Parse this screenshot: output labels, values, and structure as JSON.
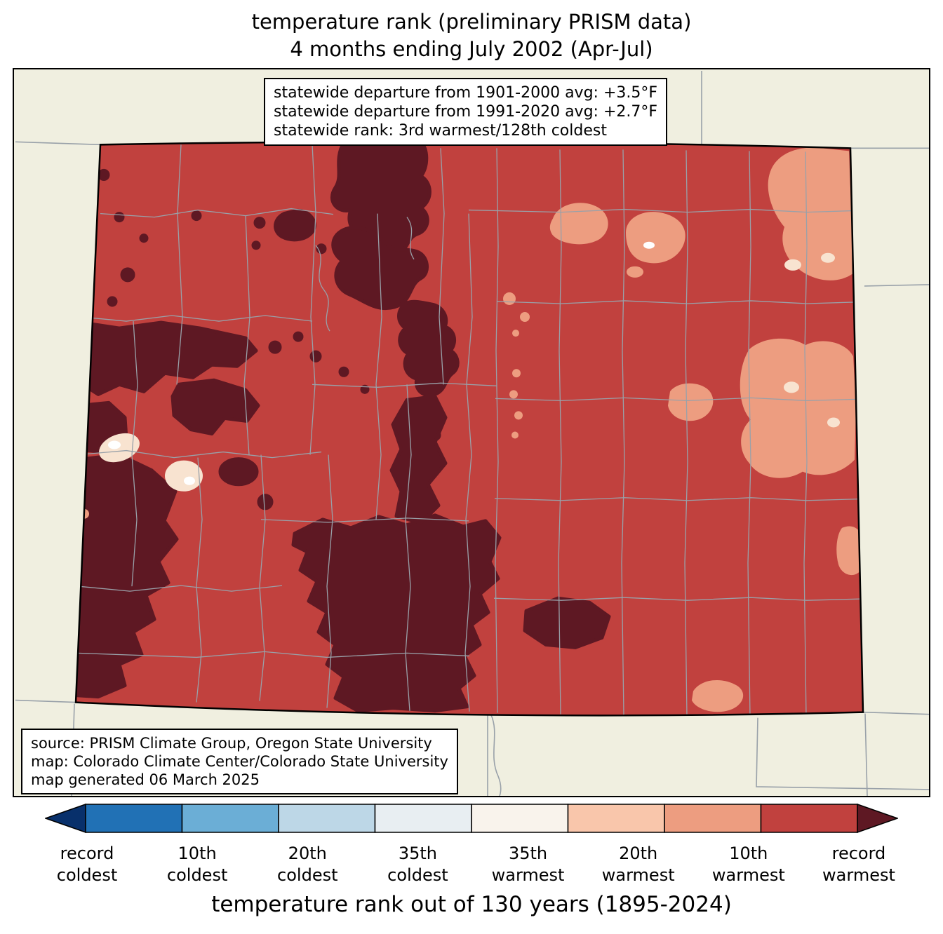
{
  "title": {
    "line1": "temperature rank (preliminary PRISM data)",
    "line2": "4 months ending July 2002 (Apr-Jul)"
  },
  "stats_box": {
    "line1": "statewide departure from 1901-2000 avg: +3.5°F",
    "line2": "statewide departure from 1991-2020 avg: +2.7°F",
    "line3": "statewide rank: 3rd warmest/128th coldest"
  },
  "source_box": {
    "line1": "source: PRISM Climate Group, Oregon State University",
    "line2": "map: Colorado Climate Center/Colorado State University",
    "line3": "map generated 06 March 2025"
  },
  "colorbar": {
    "title": "temperature rank out of 130 years (1895-2024)",
    "arrow_left": {
      "label": "record coldest",
      "color": "#08306b"
    },
    "arrow_right": {
      "label": "record warmest",
      "color": "#5e1823"
    },
    "segments": [
      "#2171b5",
      "#6baed6",
      "#bdd7e7",
      "#e8eef2",
      "#f9f3ec",
      "#f9c6ab",
      "#ed9d80",
      "#c1413e"
    ],
    "ticks": [
      {
        "line1": "record",
        "line2": "coldest"
      },
      {
        "line1": "10th",
        "line2": "coldest"
      },
      {
        "line1": "20th",
        "line2": "coldest"
      },
      {
        "line1": "35th",
        "line2": "coldest"
      },
      {
        "line1": "35th",
        "line2": "warmest"
      },
      {
        "line1": "20th",
        "line2": "warmest"
      },
      {
        "line1": "10th",
        "line2": "warmest"
      },
      {
        "line1": "record",
        "line2": "warmest"
      }
    ]
  },
  "map": {
    "state": "Colorado",
    "legend_colors": {
      "background_land": "#f0efe0",
      "rank_10th_warmest_to_record": "#c1413e",
      "rank_record_warmest": "#5e1823",
      "rank_20th_warmest": "#ed9d80",
      "rank_35th_warmest": "#f8e3d0",
      "county_line": "#99a1a9",
      "state_outline": "#000000"
    }
  }
}
